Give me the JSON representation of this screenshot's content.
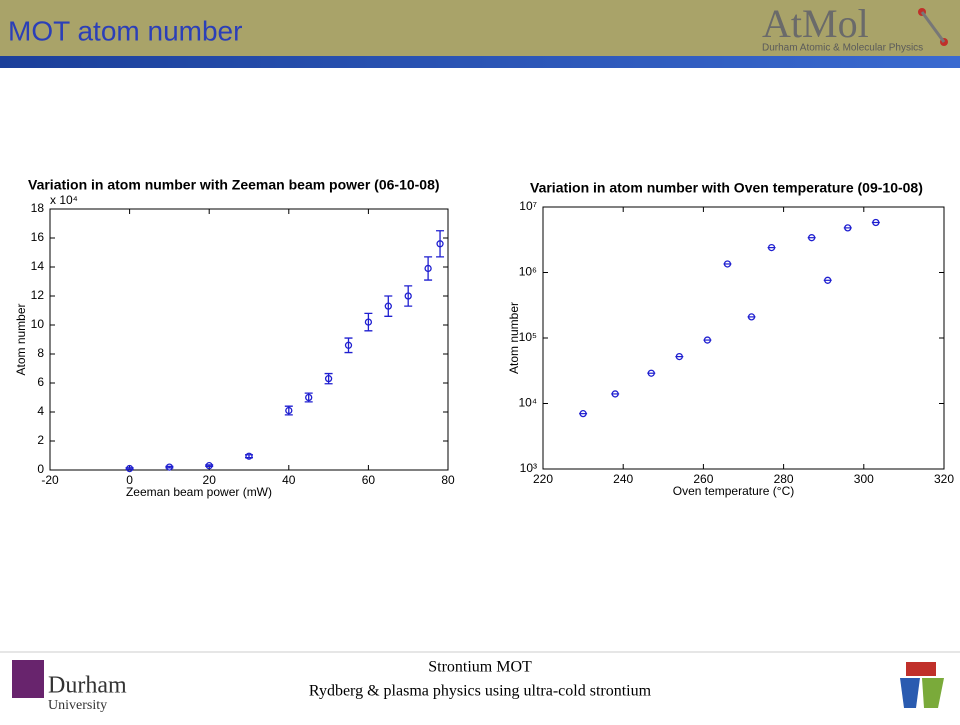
{
  "header": {
    "title": "MOT atom number",
    "logo_text": "AtMol",
    "logo_subtitle": "Durham Atomic & Molecular Physics"
  },
  "footer": {
    "line1": "Strontium MOT",
    "line2": "Rydberg & plasma physics using ultra-cold strontium",
    "university_name": "Durham",
    "university_word": "University"
  },
  "chart_data": [
    {
      "type": "scatter",
      "title": "Variation in atom number with Zeeman beam power (06-10-08)",
      "xlabel": "Zeeman beam power (mW)",
      "ylabel": "Atom number",
      "y_multiplier": "x 10⁴",
      "color": "#1f1fd0",
      "log_y": false,
      "x": [
        0,
        10,
        20,
        30,
        40,
        45,
        50,
        55,
        60,
        65,
        70,
        75,
        78
      ],
      "values": [
        0.1,
        0.2,
        0.3,
        0.95,
        4.1,
        5.0,
        6.3,
        8.6,
        10.2,
        11.3,
        12.0,
        13.9,
        15.6
      ],
      "errors": [
        0.05,
        0.05,
        0.05,
        0.1,
        0.3,
        0.3,
        0.35,
        0.5,
        0.6,
        0.7,
        0.7,
        0.8,
        0.9
      ],
      "xlim": [
        -20,
        80
      ],
      "xticks": [
        -20,
        0,
        20,
        40,
        60,
        80
      ],
      "ylim": [
        0,
        18
      ],
      "yticks": [
        0,
        2,
        4,
        6,
        8,
        10,
        12,
        14,
        16,
        18
      ]
    },
    {
      "type": "scatter",
      "title": "Variation in atom number with Oven temperature (09-10-08)",
      "xlabel": "Oven temperature (°C)",
      "ylabel": "Atom number",
      "color": "#1f1fd0",
      "log_y": true,
      "x": [
        230,
        238,
        247,
        254,
        261,
        266,
        272,
        277,
        287,
        291,
        296,
        303
      ],
      "values": [
        7000,
        14000,
        29000,
        52000,
        93000,
        1350000,
        210000,
        2400000,
        3400000,
        760000,
        4800000,
        5800000
      ],
      "xlim": [
        220,
        320
      ],
      "xticks": [
        220,
        240,
        260,
        280,
        300,
        320
      ],
      "ylim": [
        1000,
        10000000
      ],
      "yticks": [
        {
          "value": 1000,
          "label": "10³"
        },
        {
          "value": 10000,
          "label": "10⁴"
        },
        {
          "value": 100000,
          "label": "10⁵"
        },
        {
          "value": 1000000,
          "label": "10⁶"
        },
        {
          "value": 10000000,
          "label": "10⁷"
        }
      ]
    }
  ]
}
